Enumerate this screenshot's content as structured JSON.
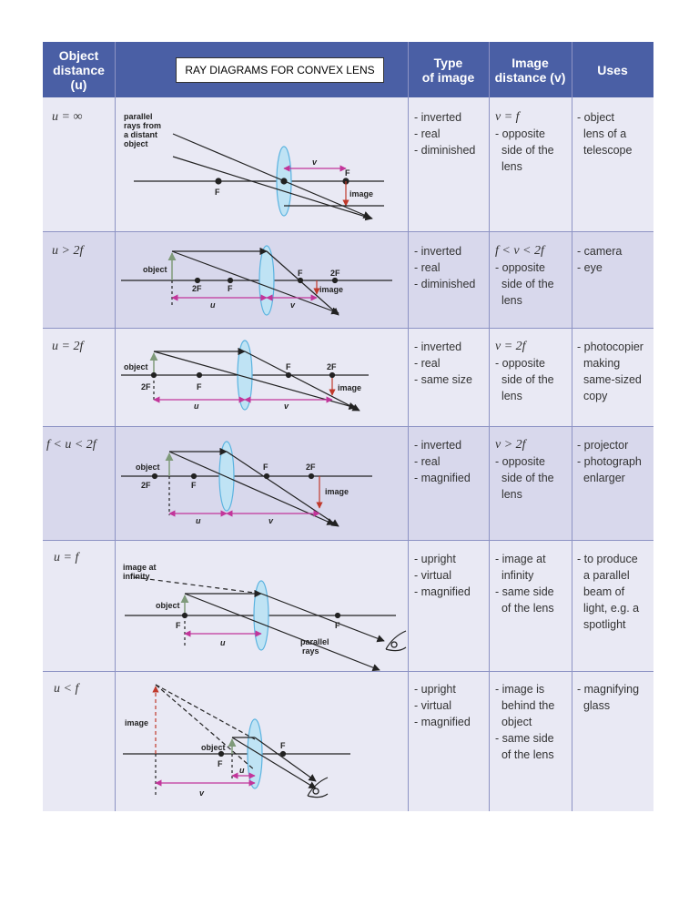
{
  "headers": {
    "object_distance": [
      "Object",
      "distance",
      "(u)"
    ],
    "type_of_image": [
      "Type",
      "of image"
    ],
    "image_distance": [
      "Image",
      "distance (v)"
    ],
    "uses": [
      "Uses"
    ]
  },
  "title": "RAY DIAGRAMS FOR CONVEX LENS",
  "rows": [
    {
      "condition": "u = ∞",
      "type": [
        "- inverted",
        "- real",
        "- diminished"
      ],
      "image_distance": [
        "v = f",
        "- opposite",
        "  side of the",
        "  lens"
      ],
      "uses": [
        "- object",
        "  lens of a",
        "  telescope"
      ],
      "labels": [
        "parallel",
        "rays from",
        "a distant",
        "object",
        "v",
        "F",
        "F",
        "image"
      ]
    },
    {
      "condition": "u > 2f",
      "type": [
        "- inverted",
        "- real",
        "- diminished"
      ],
      "image_distance": [
        "f < v < 2f",
        "- opposite",
        "  side of the",
        "  lens"
      ],
      "uses": [
        "- camera",
        "- eye"
      ],
      "labels": [
        "object",
        "2F",
        "F",
        "F",
        "2F",
        "image",
        "u",
        "v"
      ]
    },
    {
      "condition": "u = 2f",
      "type": [
        "- inverted",
        "- real",
        "- same size"
      ],
      "image_distance": [
        "v = 2f",
        "- opposite",
        "  side of the",
        "  lens"
      ],
      "uses": [
        "- photocopier",
        "  making",
        "  same-sized",
        "  copy"
      ],
      "labels": [
        "object",
        "2F",
        "F",
        "F",
        "2F",
        "image",
        "u",
        "v"
      ]
    },
    {
      "condition": "f < u < 2f",
      "type": [
        "- inverted",
        "- real",
        "- magnified"
      ],
      "image_distance": [
        "v > 2f",
        "- opposite",
        "  side of the",
        "  lens"
      ],
      "uses": [
        "- projector",
        "- photograph",
        "  enlarger"
      ],
      "labels": [
        "object",
        "2F",
        "F",
        "F",
        "2F",
        "image",
        "u",
        "v"
      ]
    },
    {
      "condition": "u = f",
      "type": [
        "- upright",
        "- virtual",
        "- magnified"
      ],
      "image_distance": [
        "- image at",
        "  infinity",
        "- same side",
        "  of the lens"
      ],
      "uses": [
        "- to produce",
        "  a parallel",
        "  beam of",
        "  light, e.g. a",
        "  spotlight"
      ],
      "labels": [
        "image at",
        "infinity",
        "object",
        "F",
        "F",
        "u",
        "parallel",
        "rays"
      ]
    },
    {
      "condition": "u < f",
      "type": [
        "- upright",
        "- virtual",
        "- magnified"
      ],
      "image_distance": [
        "- image is",
        "  behind the",
        "  object",
        "- same side",
        "  of the lens"
      ],
      "uses": [
        "- magnifying",
        "  glass"
      ],
      "labels": [
        "image",
        "object",
        "F",
        "F",
        "u",
        "v"
      ]
    }
  ],
  "colors": {
    "header_bg": "#4a5fa5",
    "row_light": "#e9e9f4",
    "row_dark": "#d8d8ec",
    "grid": "#8d93c4",
    "lens": "#5bb3e0",
    "magenta": "#c2359a",
    "object_arrow": "#7f9a7a",
    "image_arrow": "#c0392b"
  }
}
